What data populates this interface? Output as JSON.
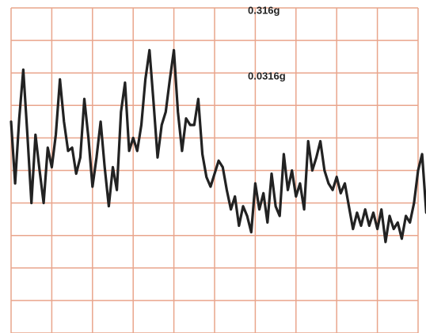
{
  "chart_data": {
    "type": "line",
    "annotations": [
      "0.316g",
      "0.0316g"
    ],
    "x": [
      0,
      0.1,
      0.2,
      0.3,
      0.4,
      0.5,
      0.6,
      0.7,
      0.8,
      0.9,
      1,
      1.1,
      1.2,
      1.3,
      1.4,
      1.5,
      1.6,
      1.7,
      1.8,
      1.9,
      2,
      2.1,
      2.2,
      2.3,
      2.4,
      2.5,
      2.6,
      2.7,
      2.8,
      2.9,
      3,
      3.1,
      3.2,
      3.3,
      3.4,
      3.5,
      3.6,
      3.7,
      3.8,
      3.9,
      4,
      4.1,
      4.2,
      4.3,
      4.4,
      4.5,
      4.6,
      4.7,
      4.8,
      4.9,
      5,
      5.1,
      5.2,
      5.3,
      5.4,
      5.5,
      5.6,
      5.7,
      5.8,
      5.9,
      6,
      6.1,
      6.2,
      6.3,
      6.4,
      6.5,
      6.6,
      6.7,
      6.8,
      6.9,
      7,
      7.1,
      7.2,
      7.3,
      7.4,
      7.5,
      7.6,
      7.7,
      7.8,
      7.9,
      8,
      8.1,
      8.2,
      8.3,
      8.4,
      8.5,
      8.6,
      8.7,
      8.8,
      8.9,
      9,
      9.1,
      9.2,
      9.3,
      9.4,
      9.5,
      9.6,
      9.7,
      9.8,
      9.9,
      10,
      10.1,
      10.2
    ],
    "series": [
      {
        "color": "#222222",
        "values": [
          6.5,
          4.6,
          6.6,
          8.1,
          6.1,
          4.0,
          6.1,
          5.0,
          4.0,
          5.7,
          5.1,
          6.1,
          7.8,
          6.5,
          5.6,
          5.7,
          4.9,
          5.4,
          7.2,
          6.0,
          4.5,
          5.4,
          6.5,
          5.1,
          3.9,
          5.1,
          4.4,
          6.8,
          7.7,
          5.6,
          6.0,
          5.6,
          6.4,
          7.8,
          8.7,
          7.1,
          5.4,
          6.4,
          6.8,
          7.8,
          8.7,
          6.8,
          5.6,
          6.6,
          6.4,
          6.4,
          7.2,
          5.5,
          4.8,
          4.5,
          4.9,
          5.3,
          5.1,
          4.4,
          3.8,
          4.2,
          3.3,
          3.9,
          3.6,
          3.1,
          4.6,
          3.8,
          4.3,
          3.4,
          4.9,
          3.9,
          3.6,
          5.5,
          4.4,
          5.0,
          4.2,
          4.6,
          3.8,
          5.9,
          5.0,
          5.4,
          5.9,
          5.0,
          4.6,
          4.4,
          4.8,
          4.3,
          4.6,
          3.9,
          3.2,
          3.7,
          3.3,
          3.8,
          3.3,
          3.7,
          3.2,
          3.8,
          2.8,
          3.6,
          3.2,
          3.4,
          2.9,
          3.6,
          3.4,
          4.0,
          5.0,
          5.5,
          3.7
        ]
      }
    ],
    "xlim": [
      0,
      10
    ],
    "ylim": [
      0,
      10
    ],
    "xticks": [
      0,
      1,
      2,
      3,
      4,
      5,
      6,
      7,
      8,
      9,
      10
    ],
    "yticks": [
      0,
      1,
      2,
      3,
      4,
      5,
      6,
      7,
      8,
      9,
      10
    ],
    "grid": true,
    "grid_color": "#e9a58c"
  }
}
